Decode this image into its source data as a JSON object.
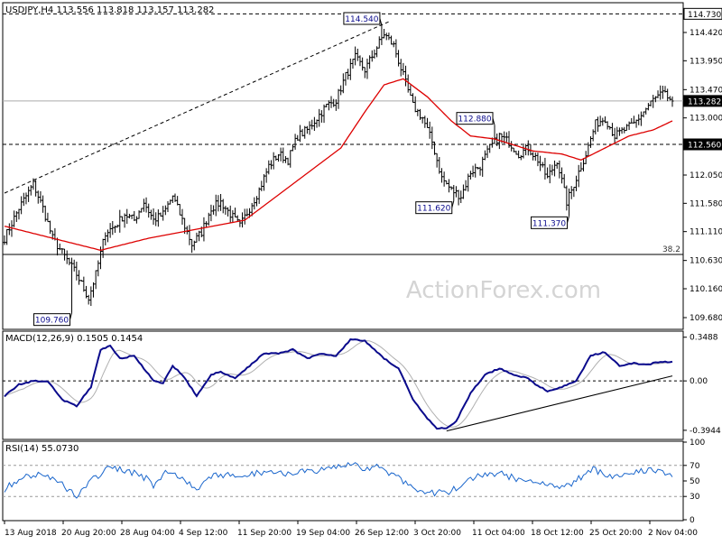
{
  "chart_data": [
    {
      "type": "candlestick",
      "panel": "price",
      "header": "USDJPY,H4  113.556 113.818 113.157 113.282",
      "watermark": "ActionForex.com",
      "ylim": [
        109.5,
        114.9
      ],
      "yticks": [
        109.68,
        110.16,
        110.63,
        111.11,
        111.58,
        112.05,
        112.53,
        113.0,
        113.47,
        113.95,
        114.42
      ],
      "tick_labels": [
        "109.680",
        "110.160",
        "110.630",
        "111.110",
        "111.580",
        "112.050",
        "112.530",
        "113.000",
        "113.470",
        "113.950",
        "114.420"
      ],
      "price_badges": [
        {
          "value": 114.73,
          "label": "114.730",
          "style": "plain"
        },
        {
          "value": 113.282,
          "label": "113.282",
          "style": "filled"
        },
        {
          "value": 112.56,
          "label": "112.560",
          "style": "filled"
        }
      ],
      "hlines": [
        {
          "value": 114.73,
          "style": "dashed",
          "color": "#000000"
        },
        {
          "value": 113.282,
          "style": "solid",
          "color": "#aaaaaa"
        },
        {
          "value": 112.56,
          "style": "dashed",
          "color": "#000000"
        },
        {
          "value": 110.73,
          "style": "solid",
          "color": "#000000",
          "label": "38.2"
        }
      ],
      "annotations": [
        {
          "label": "114.540",
          "value": 114.54,
          "pos": "top-left"
        },
        {
          "label": "112.880",
          "value": 112.88,
          "pos": "top-left"
        },
        {
          "label": "111.620",
          "value": 111.62,
          "pos": "bottom-left"
        },
        {
          "label": "111.370",
          "value": 111.37,
          "pos": "bottom-left"
        },
        {
          "label": "109.760",
          "value": 109.76,
          "pos": "bottom-left"
        }
      ],
      "price_anchors": [
        [
          0,
          111.0
        ],
        [
          6,
          111.5
        ],
        [
          12,
          111.9
        ],
        [
          16,
          111.5
        ],
        [
          20,
          111.0
        ],
        [
          25,
          110.7
        ],
        [
          30,
          110.4
        ],
        [
          35,
          110.0
        ],
        [
          38,
          110.4
        ],
        [
          42,
          111.1
        ],
        [
          46,
          111.2
        ],
        [
          50,
          111.4
        ],
        [
          54,
          111.3
        ],
        [
          58,
          111.6
        ],
        [
          62,
          111.3
        ],
        [
          66,
          111.4
        ],
        [
          70,
          111.7
        ],
        [
          74,
          111.3
        ],
        [
          78,
          110.9
        ],
        [
          82,
          111.1
        ],
        [
          86,
          111.5
        ],
        [
          90,
          111.6
        ],
        [
          94,
          111.4
        ],
        [
          98,
          111.2
        ],
        [
          102,
          111.5
        ],
        [
          106,
          111.8
        ],
        [
          110,
          112.2
        ],
        [
          114,
          112.4
        ],
        [
          118,
          112.3
        ],
        [
          122,
          112.7
        ],
        [
          126,
          112.8
        ],
        [
          130,
          113.0
        ],
        [
          134,
          113.2
        ],
        [
          138,
          113.3
        ],
        [
          142,
          113.7
        ],
        [
          146,
          114.0
        ],
        [
          150,
          113.8
        ],
        [
          154,
          114.1
        ],
        [
          158,
          114.4
        ],
        [
          162,
          114.2
        ],
        [
          166,
          113.7
        ],
        [
          170,
          113.2
        ],
        [
          174,
          113.0
        ],
        [
          178,
          112.6
        ],
        [
          182,
          112.0
        ],
        [
          186,
          111.8
        ],
        [
          190,
          111.7
        ],
        [
          194,
          112.1
        ],
        [
          198,
          112.2
        ],
        [
          202,
          112.5
        ],
        [
          206,
          112.7
        ],
        [
          210,
          112.6
        ],
        [
          214,
          112.4
        ],
        [
          218,
          112.5
        ],
        [
          222,
          112.3
        ],
        [
          226,
          112.0
        ],
        [
          230,
          112.3
        ],
        [
          234,
          111.6
        ],
        [
          238,
          112.0
        ],
        [
          242,
          112.4
        ],
        [
          246,
          112.9
        ],
        [
          250,
          113.0
        ],
        [
          254,
          112.7
        ],
        [
          258,
          112.8
        ],
        [
          262,
          112.9
        ],
        [
          266,
          113.1
        ],
        [
          270,
          113.3
        ],
        [
          274,
          113.4
        ],
        [
          278,
          113.28
        ]
      ],
      "fixed_points": [
        [
          28,
          109.76
        ],
        [
          157,
          114.54
        ],
        [
          187,
          111.62
        ],
        [
          204,
          112.88
        ],
        [
          235,
          111.37
        ]
      ],
      "ma_anchors": [
        [
          0,
          111.2
        ],
        [
          20,
          111.0
        ],
        [
          40,
          110.8
        ],
        [
          60,
          111.0
        ],
        [
          80,
          111.15
        ],
        [
          100,
          111.3
        ],
        [
          110,
          111.6
        ],
        [
          120,
          111.9
        ],
        [
          140,
          112.5
        ],
        [
          150,
          113.1
        ],
        [
          158,
          113.55
        ],
        [
          166,
          113.65
        ],
        [
          176,
          113.35
        ],
        [
          186,
          112.95
        ],
        [
          194,
          112.7
        ],
        [
          204,
          112.65
        ],
        [
          220,
          112.45
        ],
        [
          232,
          112.4
        ],
        [
          240,
          112.3
        ],
        [
          250,
          112.5
        ],
        [
          260,
          112.7
        ],
        [
          270,
          112.8
        ],
        [
          278,
          112.95
        ]
      ],
      "ma_color": "#dd0000",
      "up_color": "#000000",
      "trendlines": [
        {
          "from": [
            0,
            111.75
          ],
          "to": [
            160,
            114.6
          ],
          "style": "dashed"
        }
      ],
      "x_labels": [
        "13 Aug 2018",
        "20 Aug 20:00",
        "28 Aug 04:00",
        "4 Sep 12:00",
        "11 Sep 20:00",
        "19 Sep 04:00",
        "26 Sep 12:00",
        "3 Oct 20:00",
        "11 Oct 04:00",
        "18 Oct 12:00",
        "25 Oct 20:00",
        "2 Nov 04:00"
      ]
    },
    {
      "type": "line",
      "panel": "macd",
      "header": "MACD(12,26,9) 0.1505 0.1454",
      "ylim": [
        -0.46,
        0.39
      ],
      "yticks": [
        0.3488,
        0.0,
        -0.3944
      ],
      "tick_labels": [
        "0.3488",
        "0.00",
        "-0.3944"
      ],
      "zero_line": 0.0,
      "macd_anchors": [
        [
          0,
          -0.12
        ],
        [
          6,
          -0.03
        ],
        [
          12,
          0.0
        ],
        [
          18,
          0.0
        ],
        [
          24,
          -0.15
        ],
        [
          30,
          -0.2
        ],
        [
          36,
          -0.05
        ],
        [
          40,
          0.25
        ],
        [
          44,
          0.28
        ],
        [
          48,
          0.18
        ],
        [
          54,
          0.2
        ],
        [
          58,
          0.1
        ],
        [
          62,
          0.0
        ],
        [
          66,
          -0.02
        ],
        [
          70,
          0.12
        ],
        [
          74,
          0.05
        ],
        [
          80,
          -0.12
        ],
        [
          86,
          0.05
        ],
        [
          90,
          0.07
        ],
        [
          96,
          0.02
        ],
        [
          102,
          0.12
        ],
        [
          108,
          0.22
        ],
        [
          114,
          0.22
        ],
        [
          120,
          0.25
        ],
        [
          126,
          0.18
        ],
        [
          132,
          0.22
        ],
        [
          138,
          0.2
        ],
        [
          144,
          0.33
        ],
        [
          150,
          0.32
        ],
        [
          154,
          0.25
        ],
        [
          158,
          0.18
        ],
        [
          164,
          0.1
        ],
        [
          170,
          -0.15
        ],
        [
          176,
          -0.3
        ],
        [
          180,
          -0.38
        ],
        [
          184,
          -0.38
        ],
        [
          188,
          -0.32
        ],
        [
          194,
          -0.1
        ],
        [
          200,
          0.05
        ],
        [
          206,
          0.1
        ],
        [
          212,
          0.05
        ],
        [
          218,
          0.02
        ],
        [
          222,
          -0.04
        ],
        [
          226,
          -0.08
        ],
        [
          232,
          -0.05
        ],
        [
          238,
          0.0
        ],
        [
          244,
          0.2
        ],
        [
          250,
          0.23
        ],
        [
          256,
          0.12
        ],
        [
          262,
          0.14
        ],
        [
          268,
          0.13
        ],
        [
          272,
          0.15
        ],
        [
          278,
          0.15
        ]
      ],
      "series": [
        {
          "name": "MACD",
          "values_ref": "macd_anchors",
          "color": "#0a0a8c"
        },
        {
          "name": "Signal",
          "values_ref": "macd_anchors",
          "lag": 3,
          "color": "#b0b0b0"
        }
      ],
      "trendlines": [
        {
          "from": [
            184,
            -0.4
          ],
          "to": [
            278,
            0.04
          ],
          "style": "solid"
        }
      ]
    },
    {
      "type": "line",
      "panel": "rsi",
      "header": "RSI(14) 55.0730",
      "ylim": [
        0,
        100
      ],
      "yticks": [
        100,
        70,
        50,
        30,
        0
      ],
      "tick_labels": [
        "100",
        "70",
        "50",
        "30",
        "0"
      ],
      "levels": [
        70,
        30
      ],
      "rsi_anchors": [
        [
          0,
          40
        ],
        [
          8,
          55
        ],
        [
          16,
          60
        ],
        [
          24,
          45
        ],
        [
          30,
          32
        ],
        [
          38,
          55
        ],
        [
          44,
          68
        ],
        [
          50,
          62
        ],
        [
          56,
          60
        ],
        [
          62,
          45
        ],
        [
          68,
          62
        ],
        [
          74,
          55
        ],
        [
          80,
          40
        ],
        [
          86,
          55
        ],
        [
          92,
          58
        ],
        [
          98,
          52
        ],
        [
          104,
          60
        ],
        [
          110,
          62
        ],
        [
          116,
          60
        ],
        [
          122,
          63
        ],
        [
          128,
          60
        ],
        [
          134,
          65
        ],
        [
          140,
          68
        ],
        [
          146,
          72
        ],
        [
          150,
          65
        ],
        [
          156,
          70
        ],
        [
          160,
          60
        ],
        [
          166,
          50
        ],
        [
          172,
          40
        ],
        [
          178,
          35
        ],
        [
          184,
          35
        ],
        [
          190,
          42
        ],
        [
          196,
          55
        ],
        [
          202,
          60
        ],
        [
          208,
          58
        ],
        [
          214,
          52
        ],
        [
          220,
          50
        ],
        [
          226,
          48
        ],
        [
          232,
          40
        ],
        [
          238,
          50
        ],
        [
          244,
          65
        ],
        [
          250,
          60
        ],
        [
          256,
          55
        ],
        [
          262,
          62
        ],
        [
          268,
          65
        ],
        [
          274,
          60
        ],
        [
          278,
          55
        ]
      ],
      "series": [
        {
          "name": "RSI",
          "values_ref": "rsi_anchors",
          "color": "#1a66cc"
        }
      ]
    }
  ]
}
